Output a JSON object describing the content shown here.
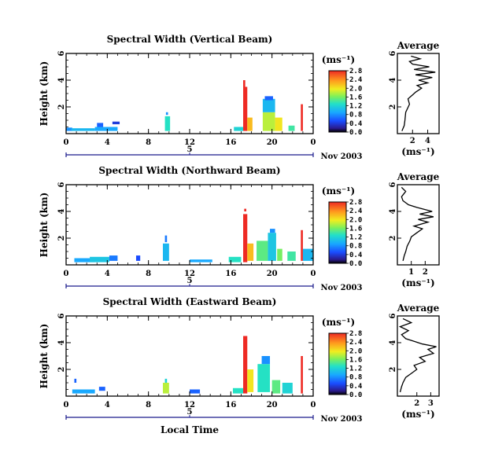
{
  "chart_data": [
    {
      "type": "heatmap",
      "title": "Spectral Width (Vertical Beam)",
      "ylabel": "Height (km)",
      "xlabel": "",
      "date_label": "Nov 2003",
      "day_label": "5",
      "x_ticks": [
        "0",
        "4",
        "8",
        "12",
        "16",
        "20",
        "0"
      ],
      "xlim": [
        0,
        24
      ],
      "y_ticks": [
        "2",
        "4",
        "6"
      ],
      "ylim": [
        0,
        6
      ],
      "colorbar": {
        "unit": "(ms⁻¹)",
        "labels": [
          "0.0",
          "0.4",
          "0.8",
          "1.2",
          "1.6",
          "2.0",
          "2.4",
          "2.8"
        ],
        "range": [
          0,
          2.8
        ]
      },
      "cells": [
        {
          "t": 0,
          "t2": 0.6,
          "h": 0.2,
          "h2": 0.45,
          "v": 0.8
        },
        {
          "t": 0.5,
          "t2": 2.8,
          "h": 0.2,
          "h2": 0.4,
          "v": 1.0
        },
        {
          "t": 2.8,
          "t2": 5.0,
          "h": 0.2,
          "h2": 0.5,
          "v": 0.9
        },
        {
          "t": 3.0,
          "t2": 3.6,
          "h": 0.5,
          "h2": 0.8,
          "v": 0.6
        },
        {
          "t": 4.5,
          "t2": 5.2,
          "h": 0.7,
          "h2": 0.9,
          "v": 0.4
        },
        {
          "t": 9.6,
          "t2": 10.1,
          "h": 0.2,
          "h2": 1.3,
          "v": 1.3
        },
        {
          "t": 9.7,
          "t2": 9.9,
          "h": 1.4,
          "h2": 1.6,
          "v": 0.8
        },
        {
          "t": 16.3,
          "t2": 17.2,
          "h": 0.2,
          "h2": 0.5,
          "v": 1.2
        },
        {
          "t": 17.2,
          "t2": 17.6,
          "h": 0.2,
          "h2": 3.5,
          "v": 2.8
        },
        {
          "t": 17.2,
          "t2": 17.4,
          "h": 3.5,
          "h2": 4.0,
          "v": 2.8
        },
        {
          "t": 17.6,
          "t2": 18.1,
          "h": 0.2,
          "h2": 1.2,
          "v": 2.2
        },
        {
          "t": 19.1,
          "t2": 20.3,
          "h": 0.2,
          "h2": 1.6,
          "v": 1.8
        },
        {
          "t": 19.1,
          "t2": 20.3,
          "h": 1.6,
          "h2": 2.6,
          "v": 1.0
        },
        {
          "t": 19.3,
          "t2": 20.1,
          "h": 2.5,
          "h2": 2.8,
          "v": 0.6
        },
        {
          "t": 20.3,
          "t2": 21.0,
          "h": 0.2,
          "h2": 1.2,
          "v": 2.0
        },
        {
          "t": 21.6,
          "t2": 22.2,
          "h": 0.2,
          "h2": 0.6,
          "v": 1.4
        },
        {
          "t": 22.8,
          "t2": 23.0,
          "h": 0.2,
          "h2": 2.2,
          "v": 2.8
        }
      ],
      "avg": {
        "title": "Average",
        "xlabel": "(ms⁻¹)",
        "x_ticks": [
          "2",
          "4"
        ],
        "xlim": [
          0,
          5.5
        ],
        "y_ticks": [
          "2",
          "4",
          "6"
        ],
        "ylim": [
          0,
          6
        ],
        "x": [
          0.6,
          0.9,
          1.0,
          1.1,
          1.6,
          1.4,
          2.0,
          2.4,
          3.2,
          2.6,
          4.0,
          2.8,
          4.6,
          2.4,
          5.0,
          2.2,
          4.2,
          2.0,
          1.6,
          3.0,
          1.8
        ],
        "y": [
          0.2,
          0.6,
          1.0,
          1.6,
          2.2,
          2.6,
          2.9,
          3.1,
          3.4,
          3.6,
          3.8,
          4.0,
          4.2,
          4.4,
          4.6,
          4.8,
          5.0,
          5.2,
          5.4,
          5.6,
          5.8
        ]
      }
    },
    {
      "type": "heatmap",
      "title": "Spectral Width (Northward Beam)",
      "ylabel": "Height (km)",
      "xlabel": "",
      "date_label": "Nov 2003",
      "day_label": "5",
      "x_ticks": [
        "0",
        "4",
        "8",
        "12",
        "16",
        "20",
        "0"
      ],
      "xlim": [
        0,
        24
      ],
      "y_ticks": [
        "2",
        "4",
        "6"
      ],
      "ylim": [
        0,
        6
      ],
      "colorbar": {
        "unit": "(ms⁻¹)",
        "labels": [
          "0.0",
          "0.4",
          "0.8",
          "1.2",
          "1.6",
          "2.0",
          "2.4",
          "2.8"
        ],
        "range": [
          0,
          2.8
        ]
      },
      "cells": [
        {
          "t": 0.8,
          "t2": 2.8,
          "h": 0.2,
          "h2": 0.5,
          "v": 0.9
        },
        {
          "t": 2.3,
          "t2": 4.2,
          "h": 0.2,
          "h2": 0.6,
          "v": 1.1
        },
        {
          "t": 4.2,
          "t2": 5.0,
          "h": 0.3,
          "h2": 0.7,
          "v": 0.7
        },
        {
          "t": 6.8,
          "t2": 7.2,
          "h": 0.3,
          "h2": 0.7,
          "v": 0.5
        },
        {
          "t": 9.4,
          "t2": 10.0,
          "h": 0.3,
          "h2": 1.6,
          "v": 1.0
        },
        {
          "t": 9.6,
          "t2": 9.8,
          "h": 1.7,
          "h2": 2.2,
          "v": 0.7
        },
        {
          "t": 12.0,
          "t2": 14.2,
          "h": 0.2,
          "h2": 0.4,
          "v": 0.9
        },
        {
          "t": 15.8,
          "t2": 17.0,
          "h": 0.2,
          "h2": 0.6,
          "v": 1.3
        },
        {
          "t": 17.2,
          "t2": 17.6,
          "h": 0.2,
          "h2": 3.8,
          "v": 2.8
        },
        {
          "t": 17.3,
          "t2": 17.5,
          "h": 4.0,
          "h2": 4.2,
          "v": 2.8
        },
        {
          "t": 17.6,
          "t2": 18.2,
          "h": 0.3,
          "h2": 1.6,
          "v": 2.2
        },
        {
          "t": 18.5,
          "t2": 19.6,
          "h": 0.3,
          "h2": 1.8,
          "v": 1.5
        },
        {
          "t": 19.6,
          "t2": 20.4,
          "h": 0.3,
          "h2": 2.4,
          "v": 1.1
        },
        {
          "t": 19.8,
          "t2": 20.3,
          "h": 2.4,
          "h2": 2.7,
          "v": 0.8
        },
        {
          "t": 20.5,
          "t2": 21.0,
          "h": 0.3,
          "h2": 1.2,
          "v": 1.6
        },
        {
          "t": 21.5,
          "t2": 22.3,
          "h": 0.3,
          "h2": 1.0,
          "v": 1.4
        },
        {
          "t": 22.8,
          "t2": 23.0,
          "h": 0.3,
          "h2": 2.6,
          "v": 2.8
        },
        {
          "t": 23.0,
          "t2": 24.0,
          "h": 0.3,
          "h2": 1.2,
          "v": 1.0
        }
      ],
      "avg": {
        "title": "Average",
        "xlabel": "(ms⁻¹)",
        "x_ticks": [
          "1",
          "2"
        ],
        "xlim": [
          0,
          3.0
        ],
        "y_ticks": [
          "2",
          "4",
          "6"
        ],
        "ylim": [
          0,
          6
        ],
        "x": [
          0.4,
          0.5,
          0.6,
          0.7,
          0.9,
          1.0,
          1.4,
          1.8,
          1.2,
          2.2,
          1.5,
          2.6,
          1.6,
          2.5,
          1.4,
          0.8,
          0.4,
          0.3,
          0.6,
          0.3
        ],
        "y": [
          0.3,
          0.7,
          1.0,
          1.4,
          1.8,
          2.1,
          2.4,
          2.7,
          2.9,
          3.2,
          3.4,
          3.6,
          3.8,
          4.0,
          4.3,
          4.5,
          4.8,
          5.1,
          5.5,
          5.8
        ]
      }
    },
    {
      "type": "heatmap",
      "title": "Spectral Width (Eastward Beam)",
      "ylabel": "Height (km)",
      "xlabel": "Local Time",
      "date_label": "Nov 2003",
      "day_label": "5",
      "x_ticks": [
        "0",
        "4",
        "8",
        "12",
        "16",
        "20",
        "0"
      ],
      "xlim": [
        0,
        24
      ],
      "y_ticks": [
        "2",
        "4",
        "6"
      ],
      "ylim": [
        0,
        6
      ],
      "colorbar": {
        "unit": "(ms⁻¹)",
        "labels": [
          "0.0",
          "0.4",
          "0.8",
          "1.2",
          "1.6",
          "2.0",
          "2.4",
          "2.8"
        ],
        "range": [
          0,
          2.8
        ]
      },
      "cells": [
        {
          "t": 0.6,
          "t2": 2.8,
          "h": 0.2,
          "h2": 0.5,
          "v": 0.9
        },
        {
          "t": 0.8,
          "t2": 1.0,
          "h": 1.0,
          "h2": 1.3,
          "v": 0.6
        },
        {
          "t": 3.2,
          "t2": 3.8,
          "h": 0.4,
          "h2": 0.7,
          "v": 0.6
        },
        {
          "t": 9.4,
          "t2": 10.0,
          "h": 0.2,
          "h2": 1.0,
          "v": 1.8
        },
        {
          "t": 9.6,
          "t2": 9.8,
          "h": 1.0,
          "h2": 1.3,
          "v": 1.2
        },
        {
          "t": 12.0,
          "t2": 13.0,
          "h": 0.2,
          "h2": 0.5,
          "v": 0.6
        },
        {
          "t": 16.2,
          "t2": 17.2,
          "h": 0.2,
          "h2": 0.6,
          "v": 1.3
        },
        {
          "t": 17.2,
          "t2": 17.6,
          "h": 0.2,
          "h2": 4.5,
          "v": 2.8
        },
        {
          "t": 17.6,
          "t2": 18.2,
          "h": 0.3,
          "h2": 2.0,
          "v": 2.0
        },
        {
          "t": 18.6,
          "t2": 19.8,
          "h": 0.3,
          "h2": 2.4,
          "v": 1.3
        },
        {
          "t": 19.0,
          "t2": 19.8,
          "h": 2.4,
          "h2": 3.0,
          "v": 0.8
        },
        {
          "t": 20.0,
          "t2": 20.8,
          "h": 0.2,
          "h2": 1.2,
          "v": 1.5
        },
        {
          "t": 21.0,
          "t2": 22.0,
          "h": 0.2,
          "h2": 1.0,
          "v": 1.2
        },
        {
          "t": 22.8,
          "t2": 23.0,
          "h": 0.2,
          "h2": 3.0,
          "v": 2.8
        }
      ],
      "avg": {
        "title": "Average",
        "xlabel": "(ms⁻¹)",
        "x_ticks": [
          "2",
          "3"
        ],
        "xlim": [
          0.6,
          3.6
        ],
        "y_ticks": [
          "2",
          "4",
          "6"
        ],
        "ylim": [
          0,
          6
        ],
        "x": [
          0.8,
          0.9,
          1.0,
          1.2,
          1.6,
          2.0,
          1.8,
          2.6,
          2.2,
          3.2,
          2.8,
          3.4,
          2.4,
          1.8,
          1.2,
          0.9,
          1.4,
          0.8,
          1.6,
          1.0
        ],
        "y": [
          0.3,
          0.7,
          1.0,
          1.4,
          1.7,
          2.0,
          2.3,
          2.6,
          2.9,
          3.2,
          3.5,
          3.7,
          3.9,
          4.1,
          4.3,
          4.6,
          4.9,
          5.2,
          5.5,
          5.8
        ]
      }
    }
  ]
}
